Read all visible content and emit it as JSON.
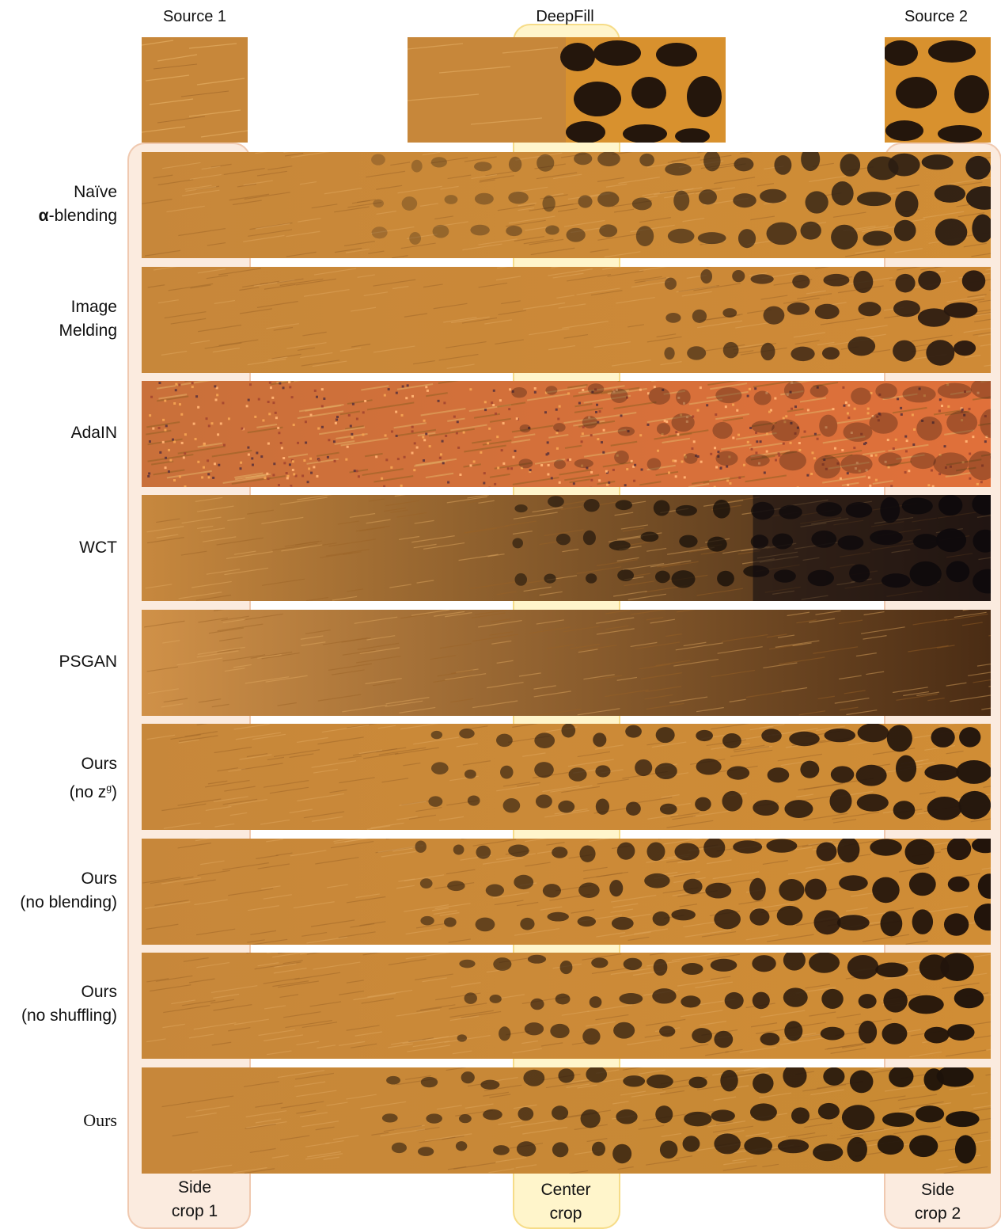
{
  "top_labels": {
    "source1": "Source 1",
    "deepfill": "DeepFill",
    "source2": "Source 2"
  },
  "rows": [
    {
      "id": "naive",
      "line1": "Naïve",
      "line2_symbol": "α",
      "line2_rest": "-blending"
    },
    {
      "id": "melding",
      "line1": "Image",
      "line2": "Melding"
    },
    {
      "id": "adain",
      "line1": "AdaIN"
    },
    {
      "id": "wct",
      "line1": "WCT"
    },
    {
      "id": "psgan",
      "line1": "PSGAN"
    },
    {
      "id": "no-zg",
      "line1": "Ours",
      "line2_pre": "(no z",
      "line2_sup": "g",
      "line2_post": ")"
    },
    {
      "id": "no-blending",
      "line1": "Ours",
      "line2": "(no blending)"
    },
    {
      "id": "no-shuffling",
      "line1": "Ours",
      "line2": "(no shuffling)"
    },
    {
      "id": "ours",
      "line1": "Ours"
    }
  ],
  "crop_labels": {
    "side1": {
      "line1": "Side",
      "line2": "crop 1"
    },
    "center": {
      "line1": "Center",
      "line2": "crop"
    },
    "side2": {
      "line1": "Side",
      "line2": "crop 2"
    }
  },
  "colors": {
    "fur": "#c98a3a",
    "spot": "#2a1a0e",
    "side_highlight": "#f6d2b9",
    "center_highlight": "#ffeca0"
  }
}
